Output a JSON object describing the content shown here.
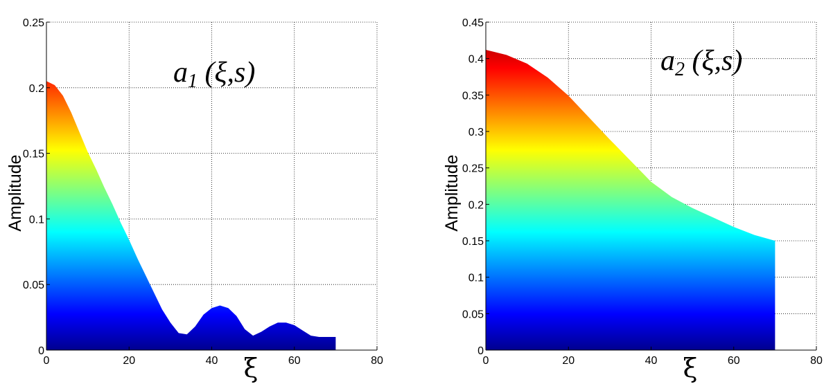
{
  "chart_data": [
    {
      "type": "area",
      "ylabel": "Amplitude",
      "xlabel": "ξ",
      "annotation": {
        "base": "a",
        "sub": "1",
        "args": " (ξ,s)"
      },
      "xlim": [
        0,
        80
      ],
      "ylim": [
        0,
        0.25
      ],
      "xticks": [
        "0",
        "20",
        "40",
        "60",
        "80"
      ],
      "yticks": [
        "0",
        "0.05",
        "0.1",
        "0.15",
        "0.2",
        "0.25"
      ],
      "grid": true,
      "colormap": "jet",
      "x": [
        0,
        2,
        4,
        6,
        8,
        10,
        12,
        14,
        16,
        18,
        20,
        22,
        24,
        26,
        28,
        30,
        32,
        34,
        36,
        38,
        40,
        42,
        44,
        46,
        48,
        50,
        52,
        54,
        56,
        58,
        60,
        62,
        64,
        66,
        68,
        70
      ],
      "values": [
        0.205,
        0.202,
        0.194,
        0.181,
        0.166,
        0.151,
        0.138,
        0.124,
        0.111,
        0.097,
        0.084,
        0.07,
        0.057,
        0.044,
        0.031,
        0.021,
        0.013,
        0.012,
        0.018,
        0.027,
        0.032,
        0.034,
        0.032,
        0.026,
        0.016,
        0.011,
        0.014,
        0.018,
        0.021,
        0.021,
        0.019,
        0.015,
        0.011,
        0.01,
        0.01,
        0.01
      ]
    },
    {
      "type": "area",
      "ylabel": "Amplitude",
      "xlabel": "ξ",
      "annotation": {
        "base": "a",
        "sub": "2",
        "args": " (ξ,s)"
      },
      "xlim": [
        0,
        80
      ],
      "ylim": [
        0,
        0.45
      ],
      "xticks": [
        "0",
        "20",
        "40",
        "60",
        "80"
      ],
      "yticks": [
        "0",
        "0.05",
        "0.1",
        "0.15",
        "0.2",
        "0.25",
        "0.3",
        "0.35",
        "0.4",
        "0.45"
      ],
      "grid": true,
      "colormap": "jet",
      "x": [
        0,
        5,
        10,
        15,
        20,
        25,
        30,
        35,
        40,
        45,
        50,
        55,
        60,
        65,
        70
      ],
      "values": [
        0.412,
        0.405,
        0.393,
        0.374,
        0.349,
        0.319,
        0.289,
        0.26,
        0.231,
        0.21,
        0.195,
        0.182,
        0.169,
        0.158,
        0.15
      ]
    }
  ]
}
